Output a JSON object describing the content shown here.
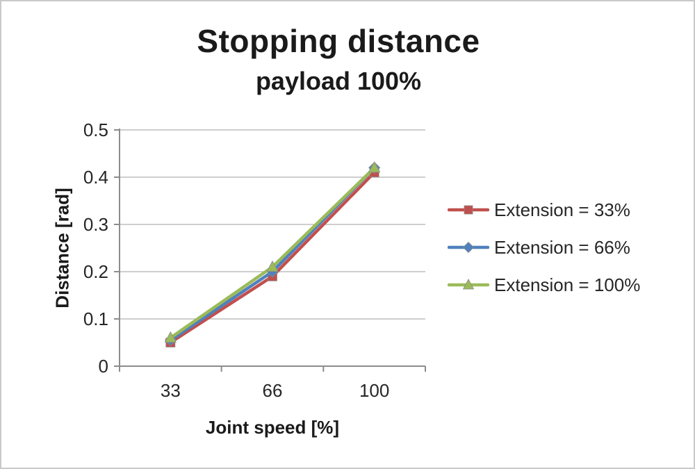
{
  "chart_data": {
    "type": "line",
    "title": "Stopping distance",
    "subtitle": "payload 100%",
    "xlabel": "Joint speed [%]",
    "ylabel": "Distance [rad]",
    "categories": [
      "33",
      "66",
      "100"
    ],
    "ylim": [
      0,
      0.5
    ],
    "y_ticks": [
      0,
      0.1,
      0.2,
      0.3,
      0.4,
      0.5
    ],
    "y_tick_labels": [
      "0",
      "0.1",
      "0.2",
      "0.3",
      "0.4",
      "0.5"
    ],
    "grid": "horizontal",
    "legend_position": "right",
    "series": [
      {
        "name": "Extension = 33%",
        "color": "#C0504D",
        "marker": "square",
        "values": [
          0.05,
          0.19,
          0.41
        ]
      },
      {
        "name": "Extension = 66%",
        "color": "#4F81BD",
        "marker": "diamond",
        "values": [
          0.055,
          0.2,
          0.42
        ]
      },
      {
        "name": "Extension = 100%",
        "color": "#9BBB59",
        "marker": "triangle",
        "values": [
          0.06,
          0.21,
          0.42
        ]
      }
    ]
  },
  "styles": {
    "axis_color": "#8c8c8c",
    "grid_color": "#bdbdbd",
    "tick_text_color": "#262626",
    "title_color": "#1a1a1a"
  }
}
